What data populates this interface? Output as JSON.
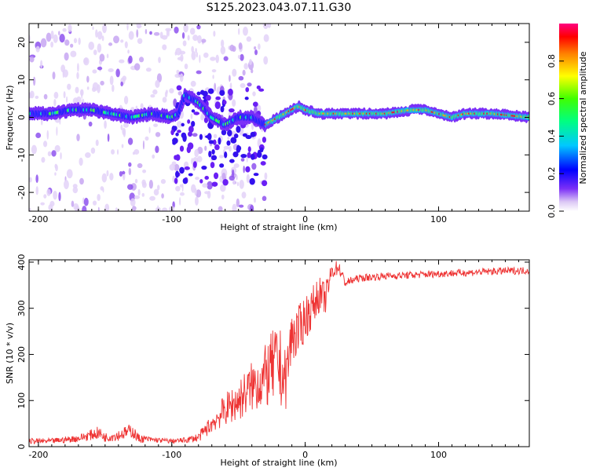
{
  "title": "S125.2023.043.07.11.G30",
  "chart_data": [
    {
      "type": "heatmap",
      "xlabel": "Height of straight line (km)",
      "ylabel": "Frequency (Hz)",
      "xlim": [
        -207,
        168
      ],
      "ylim": [
        -25,
        25
      ],
      "x_ticks": [
        -200,
        -100,
        0,
        100
      ],
      "y_ticks": [
        -20,
        -10,
        0,
        10,
        20
      ],
      "colorbar": {
        "label": "Normalized spectral amplitude",
        "range": [
          0.0,
          1.0
        ],
        "ticks": [
          "0.0",
          "0.2",
          "0.4",
          "0.6",
          "0.8"
        ],
        "tick_values": [
          0.0,
          0.2,
          0.4,
          0.6,
          0.8
        ]
      },
      "ridge": {
        "x": [
          -205,
          -190,
          -175,
          -160,
          -145,
          -130,
          -115,
          -100,
          -95,
          -90,
          -85,
          -80,
          -75,
          -70,
          -65,
          -60,
          -55,
          -50,
          -45,
          -40,
          -35,
          -30,
          -25,
          -20,
          -15,
          -10,
          -5,
          0,
          10,
          20,
          40,
          60,
          80,
          90,
          100,
          110,
          120,
          140,
          168
        ],
        "y": [
          1,
          1,
          2,
          2,
          1,
          0,
          1,
          0,
          1,
          6,
          5,
          4,
          2,
          0,
          -1,
          -2,
          -1,
          0,
          0,
          0,
          -1,
          -2,
          -1,
          0,
          1,
          2,
          3,
          2,
          1,
          1,
          1,
          1,
          2,
          2,
          1,
          0,
          1,
          1,
          0
        ]
      }
    },
    {
      "type": "line",
      "xlabel": "Height of straight line (km)",
      "ylabel": "SNR (10 * v/v)",
      "xlim": [
        -207,
        168
      ],
      "ylim": [
        0,
        405
      ],
      "x_ticks": [
        -200,
        -100,
        0,
        100
      ],
      "y_ticks": [
        0,
        100,
        200,
        300,
        400
      ],
      "series": [
        {
          "color": "#ee3333",
          "x": [
            -207,
            -190,
            -170,
            -155,
            -150,
            -140,
            -130,
            -125,
            -115,
            -100,
            -90,
            -80,
            -70,
            -60,
            -50,
            -40,
            -30,
            -25,
            -20,
            -15,
            -10,
            -5,
            0,
            5,
            10,
            15,
            20,
            25,
            30,
            40,
            60,
            80,
            100,
            120,
            140,
            168
          ],
          "y": [
            12,
            12,
            18,
            30,
            20,
            25,
            35,
            18,
            15,
            12,
            14,
            20,
            50,
            80,
            100,
            130,
            150,
            170,
            180,
            140,
            240,
            250,
            280,
            300,
            330,
            320,
            380,
            390,
            355,
            365,
            370,
            372,
            375,
            377,
            380,
            382
          ],
          "jitter": [
            6,
            6,
            8,
            14,
            10,
            12,
            16,
            10,
            6,
            5,
            6,
            10,
            20,
            35,
            45,
            55,
            70,
            80,
            90,
            70,
            60,
            55,
            50,
            45,
            40,
            35,
            20,
            15,
            10,
            8,
            8,
            8,
            8,
            8,
            8,
            8
          ]
        }
      ]
    }
  ]
}
